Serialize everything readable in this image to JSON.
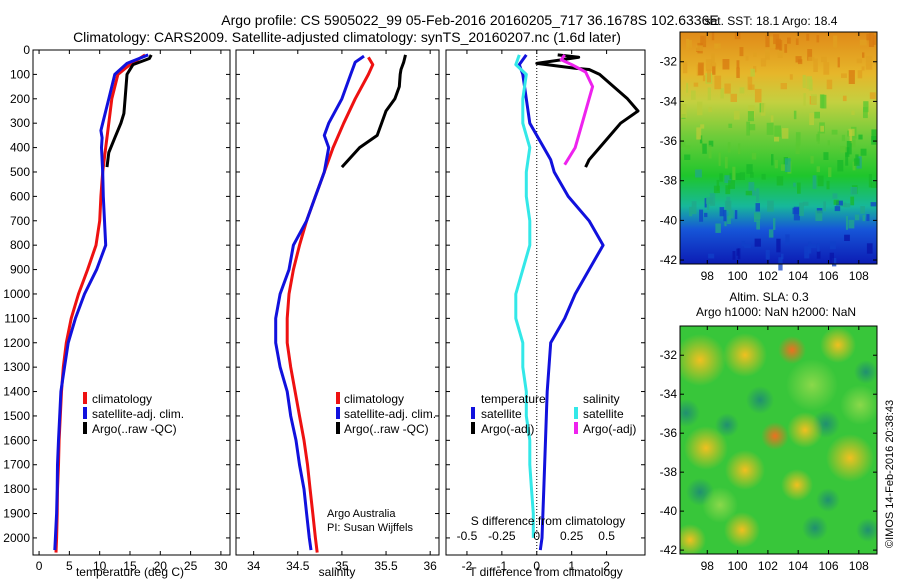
{
  "header": {
    "line1": "Argo profile: CS 5905022_99 05-Feb-2016 20160205_717 36.1678S 102.6336E",
    "line2": "Climatology: CARS2009. Satellite-adjusted climatology: synTS_20160207.nc (1.6d later)"
  },
  "colors": {
    "climatology": "#ee1111",
    "satellite": "#1111dd",
    "argo": "#000000",
    "salinity_satellite": "#33e8e8",
    "salinity_argo": "#ee22ee"
  },
  "chart_data": [
    {
      "type": "line",
      "id": "temperature",
      "xlabel": "temperature (deg C)",
      "xlim": [
        -1,
        31.5
      ],
      "ylim": [
        2070,
        0
      ],
      "xticks": [
        0,
        5,
        10,
        15,
        20,
        25,
        30
      ],
      "yticks": [
        0,
        100,
        200,
        300,
        400,
        500,
        600,
        700,
        800,
        900,
        1000,
        1100,
        1200,
        1300,
        1400,
        1500,
        1600,
        1700,
        1800,
        1900,
        2000
      ],
      "legend": [
        "climatology",
        "satellite-adj. clim.",
        "Argo(..raw -QC)"
      ],
      "series": [
        {
          "name": "climatology",
          "color_key": "climatology",
          "points": [
            [
              17.5,
              20
            ],
            [
              15,
              60
            ],
            [
              13,
              100
            ],
            [
              12,
              200
            ],
            [
              11.5,
              300
            ],
            [
              11,
              400
            ],
            [
              10.5,
              500
            ],
            [
              10.2,
              600
            ],
            [
              10,
              700
            ],
            [
              9.4,
              800
            ],
            [
              8,
              900
            ],
            [
              6.5,
              1000
            ],
            [
              5.3,
              1100
            ],
            [
              4.5,
              1200
            ],
            [
              4,
              1300
            ],
            [
              3.7,
              1400
            ],
            [
              3.5,
              1500
            ],
            [
              3.3,
              1600
            ],
            [
              3.2,
              1700
            ],
            [
              3.05,
              1800
            ],
            [
              3,
              1900
            ],
            [
              2.9,
              2000
            ],
            [
              2.8,
              2060
            ]
          ]
        },
        {
          "name": "satellite-adj. clim.",
          "color_key": "satellite",
          "points": [
            [
              18,
              20
            ],
            [
              14.5,
              55
            ],
            [
              12.5,
              100
            ],
            [
              11.5,
              200
            ],
            [
              10.5,
              300
            ],
            [
              10.2,
              330
            ],
            [
              10.4,
              360
            ],
            [
              10.3,
              400
            ],
            [
              10.5,
              500
            ],
            [
              10.6,
              600
            ],
            [
              10.8,
              700
            ],
            [
              11,
              800
            ],
            [
              9.5,
              900
            ],
            [
              7.5,
              1000
            ],
            [
              6,
              1100
            ],
            [
              4.8,
              1200
            ],
            [
              4.2,
              1300
            ],
            [
              3.6,
              1400
            ],
            [
              3.4,
              1500
            ],
            [
              3.2,
              1600
            ],
            [
              3.05,
              1700
            ],
            [
              3,
              1800
            ],
            [
              2.9,
              1900
            ],
            [
              2.7,
              2000
            ],
            [
              2.6,
              2050
            ]
          ]
        },
        {
          "name": "Argo(..raw -QC)",
          "color_key": "argo",
          "points": [
            [
              18.5,
              20
            ],
            [
              18.2,
              35
            ],
            [
              15.5,
              60
            ],
            [
              14.5,
              100
            ],
            [
              14.2,
              200
            ],
            [
              14,
              260
            ],
            [
              13.5,
              300
            ],
            [
              12.5,
              360
            ],
            [
              11.5,
              420
            ],
            [
              11.2,
              480
            ]
          ]
        }
      ]
    },
    {
      "type": "line",
      "id": "salinity",
      "xlabel": "salinity",
      "xlim": [
        33.8,
        36.1
      ],
      "ylim": [
        2070,
        0
      ],
      "xticks": [
        34,
        34.5,
        35,
        35.5,
        36
      ],
      "legend": [
        "climatology",
        "satellite-adj. clim.",
        "Argo(..raw -QC)"
      ],
      "annotations": [
        "Argo Australia",
        "PI: Susan Wijffels"
      ],
      "series": [
        {
          "name": "climatology",
          "color_key": "climatology",
          "points": [
            [
              35.3,
              30
            ],
            [
              35.35,
              60
            ],
            [
              35.3,
              100
            ],
            [
              35.15,
              200
            ],
            [
              35.02,
              300
            ],
            [
              34.9,
              400
            ],
            [
              34.8,
              500
            ],
            [
              34.7,
              600
            ],
            [
              34.6,
              700
            ],
            [
              34.52,
              800
            ],
            [
              34.45,
              900
            ],
            [
              34.4,
              1000
            ],
            [
              34.38,
              1100
            ],
            [
              34.38,
              1200
            ],
            [
              34.42,
              1300
            ],
            [
              34.47,
              1400
            ],
            [
              34.52,
              1500
            ],
            [
              34.57,
              1600
            ],
            [
              34.61,
              1700
            ],
            [
              34.64,
              1800
            ],
            [
              34.67,
              1900
            ],
            [
              34.7,
              2000
            ],
            [
              34.72,
              2060
            ]
          ]
        },
        {
          "name": "satellite-adj. clim.",
          "color_key": "satellite",
          "points": [
            [
              35.25,
              25
            ],
            [
              35.15,
              50
            ],
            [
              35.1,
              100
            ],
            [
              35,
              200
            ],
            [
              34.85,
              300
            ],
            [
              34.8,
              350
            ],
            [
              34.85,
              400
            ],
            [
              34.8,
              500
            ],
            [
              34.7,
              600
            ],
            [
              34.6,
              700
            ],
            [
              34.45,
              800
            ],
            [
              34.4,
              900
            ],
            [
              34.3,
              1000
            ],
            [
              34.25,
              1100
            ],
            [
              34.25,
              1200
            ],
            [
              34.3,
              1300
            ],
            [
              34.38,
              1400
            ],
            [
              34.42,
              1500
            ],
            [
              34.48,
              1600
            ],
            [
              34.52,
              1700
            ],
            [
              34.57,
              1800
            ],
            [
              34.6,
              1900
            ],
            [
              34.63,
              2000
            ],
            [
              34.65,
              2050
            ]
          ]
        },
        {
          "name": "Argo(..raw -QC)",
          "color_key": "argo",
          "points": [
            [
              35.72,
              20
            ],
            [
              35.7,
              50
            ],
            [
              35.67,
              80
            ],
            [
              35.66,
              100
            ],
            [
              35.65,
              150
            ],
            [
              35.6,
              200
            ],
            [
              35.5,
              250
            ],
            [
              35.45,
              300
            ],
            [
              35.4,
              350
            ],
            [
              35.2,
              400
            ],
            [
              35,
              480
            ]
          ]
        }
      ]
    },
    {
      "type": "line",
      "id": "difference",
      "xlabel": "T difference from climatology",
      "top_xlabel": "S difference from climatology",
      "xlim": [
        -2.6,
        3.1
      ],
      "ylim": [
        2070,
        0
      ],
      "xticks": [
        -2,
        -1,
        0,
        1,
        2
      ],
      "top_ticks": [
        "-0.5",
        "-0.25",
        "0",
        "0.25",
        "0.5"
      ],
      "legend_headers": [
        "temperature",
        "salinity"
      ],
      "legend": [
        "satellite",
        "Argo(-adj)",
        "satellite",
        "Argo(-adj)"
      ],
      "series": [
        {
          "name": "satellite",
          "color_key": "satellite",
          "points": [
            [
              -0.3,
              20
            ],
            [
              -0.5,
              60
            ],
            [
              -0.4,
              100
            ],
            [
              -0.3,
              200
            ],
            [
              -0.2,
              300
            ],
            [
              0.2,
              400
            ],
            [
              0.4,
              450
            ],
            [
              0.5,
              500
            ],
            [
              0.9,
              600
            ],
            [
              1.5,
              700
            ],
            [
              1.9,
              800
            ],
            [
              1.5,
              900
            ],
            [
              1.1,
              1000
            ],
            [
              0.8,
              1100
            ],
            [
              0.4,
              1200
            ],
            [
              0.3,
              1400
            ],
            [
              0.25,
              1600
            ],
            [
              0.2,
              1800
            ],
            [
              0.15,
              2000
            ],
            [
              0.1,
              2050
            ]
          ]
        },
        {
          "name": "Argo(-adj)",
          "color_key": "argo",
          "points": [
            [
              0.6,
              20
            ],
            [
              1.2,
              30
            ],
            [
              0,
              55
            ],
            [
              1.1,
              75
            ],
            [
              1.5,
              80
            ],
            [
              1.8,
              100
            ],
            [
              2.2,
              150
            ],
            [
              2.6,
              200
            ],
            [
              2.9,
              250
            ],
            [
              2.4,
              300
            ],
            [
              1.8,
              400
            ],
            [
              1.5,
              450
            ],
            [
              1.4,
              480
            ]
          ]
        },
        {
          "name": "satellite",
          "color_key": "salinity_satellite",
          "points": [
            [
              -0.5,
              20
            ],
            [
              -0.6,
              60
            ],
            [
              -0.3,
              100
            ],
            [
              -0.4,
              200
            ],
            [
              -0.4,
              300
            ],
            [
              -0.2,
              400
            ],
            [
              -0.3,
              500
            ],
            [
              -0.3,
              600
            ],
            [
              -0.2,
              700
            ],
            [
              -0.2,
              800
            ],
            [
              -0.4,
              900
            ],
            [
              -0.6,
              1000
            ],
            [
              -0.6,
              1100
            ],
            [
              -0.4,
              1200
            ],
            [
              -0.4,
              1300
            ],
            [
              -0.3,
              1400
            ],
            [
              -0.3,
              1500
            ],
            [
              -0.2,
              1600
            ],
            [
              -0.2,
              1700
            ],
            [
              -0.15,
              1800
            ],
            [
              -0.1,
              1900
            ],
            [
              -0.1,
              2000
            ]
          ]
        },
        {
          "name": "Argo(-adj)",
          "color_key": "salinity_argo",
          "points": [
            [
              0.8,
              20
            ],
            [
              0.7,
              40
            ],
            [
              1.0,
              60
            ],
            [
              1.4,
              90
            ],
            [
              1.6,
              150
            ],
            [
              1.5,
              200
            ],
            [
              1.3,
              300
            ],
            [
              1.1,
              400
            ],
            [
              0.8,
              470
            ]
          ]
        }
      ]
    },
    {
      "type": "heatmap",
      "id": "sst-map",
      "title": "sat. SST: 18.1  Argo: 18.4",
      "xlim": [
        96.2,
        109.2
      ],
      "ylim": [
        -42.2,
        -30.5
      ],
      "xticks": [
        98,
        100,
        102,
        104,
        106,
        108
      ],
      "yticks": [
        -32,
        -34,
        -36,
        -38,
        -40,
        -42
      ]
    },
    {
      "type": "heatmap",
      "id": "sla-map",
      "title": "Altim. SLA: 0.3",
      "subtitle": "Argo h1000: NaN h2000: NaN",
      "xlim": [
        96.2,
        109.2
      ],
      "ylim": [
        -42.2,
        -30.5
      ],
      "xticks": [
        98,
        100,
        102,
        104,
        106,
        108
      ],
      "yticks": [
        -32,
        -34,
        -36,
        -38,
        -40,
        -42
      ]
    }
  ],
  "credit": "©IMOS 14-Feb-2016 20:38:43"
}
